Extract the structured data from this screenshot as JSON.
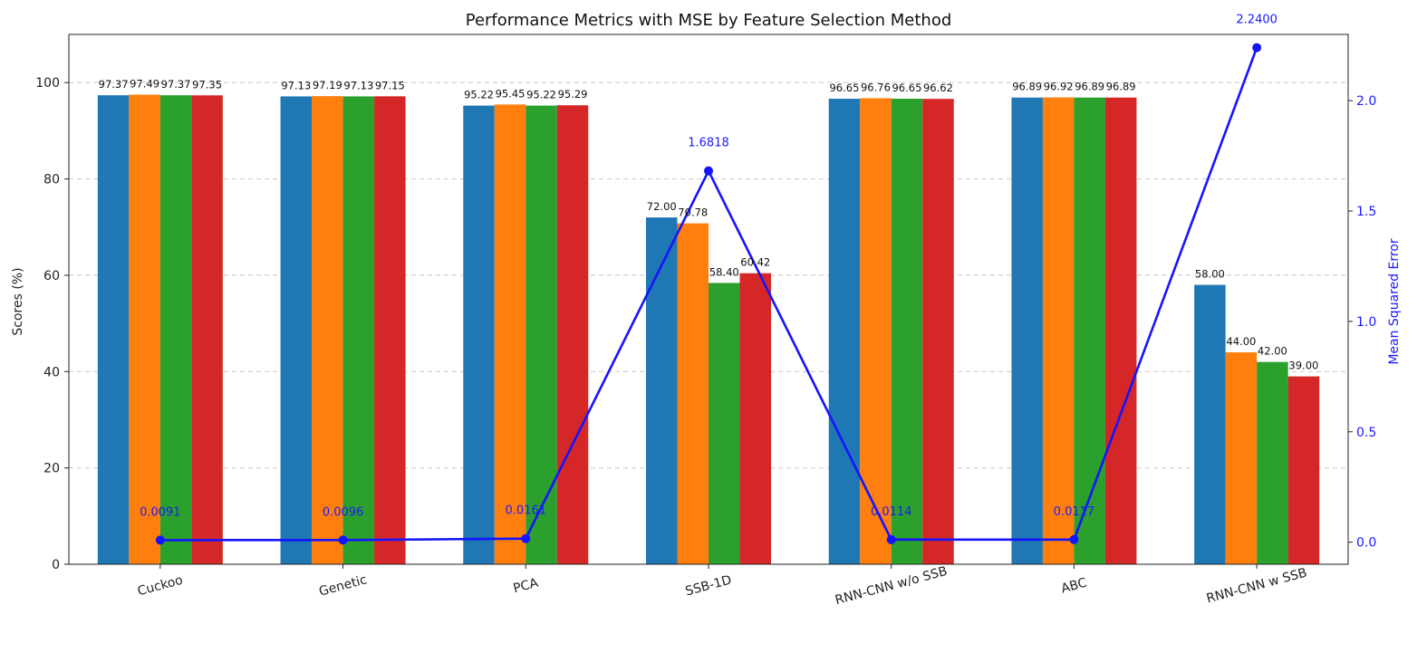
{
  "chart_data": {
    "type": "bar",
    "title": "Performance Metrics with MSE by Feature Selection Method",
    "ylabel": "Scores (%)",
    "y2label": "Mean Squared Error",
    "ylim": [
      0,
      110
    ],
    "y2lim": [
      -0.1,
      2.3
    ],
    "yticks": [
      "0",
      "20",
      "40",
      "60",
      "80",
      "100"
    ],
    "y2ticks": [
      "0.0",
      "0.5",
      "1.0",
      "1.5",
      "2.0"
    ],
    "grid": "horizontal dashed",
    "categories": [
      "Cuckoo",
      "Genetic",
      "PCA",
      "SSB-1D",
      "RNN-CNN w/o SSB",
      "ABC",
      "RNN-CNN w SSB"
    ],
    "series": [
      {
        "color": "#1f77b4",
        "values": [
          97.37,
          97.13,
          95.22,
          72.0,
          96.65,
          96.89,
          58.0
        ],
        "labels": [
          "97.37",
          "97.13",
          "95.22",
          "72.00",
          "96.65",
          "96.89",
          "58.00"
        ]
      },
      {
        "color": "#ff7f0e",
        "values": [
          97.49,
          97.19,
          95.45,
          70.78,
          96.76,
          96.92,
          44.0
        ],
        "labels": [
          "97.49",
          "97.19",
          "95.45",
          "70.78",
          "96.76",
          "96.92",
          "44.00"
        ]
      },
      {
        "color": "#2ca02c",
        "values": [
          97.37,
          97.13,
          95.22,
          58.4,
          96.65,
          96.89,
          42.0
        ],
        "labels": [
          "97.37",
          "97.13",
          "95.22",
          "58.40",
          "96.65",
          "96.89",
          "42.00"
        ]
      },
      {
        "color": "#d62728",
        "values": [
          97.35,
          97.15,
          95.29,
          60.42,
          96.62,
          96.89,
          39.0
        ],
        "labels": [
          "97.35",
          "97.15",
          "95.29",
          "60.42",
          "96.62",
          "96.89",
          "39.00"
        ]
      }
    ],
    "line": {
      "axis": "right",
      "color": "#1414ff",
      "values": [
        0.0091,
        0.0096,
        0.0161,
        1.6818,
        0.0114,
        0.0117,
        2.24
      ],
      "labels": [
        "0.0091",
        "0.0096",
        "0.0161",
        "1.6818",
        "0.0114",
        "0.0117",
        "2.2400"
      ]
    }
  }
}
